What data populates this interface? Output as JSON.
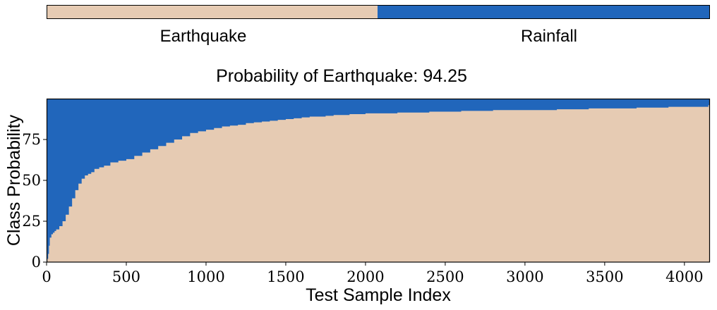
{
  "colors": {
    "earthquake": "#e6cbb3",
    "rainfall": "#2166bb",
    "frame": "#000000",
    "background": "#ffffff"
  },
  "legend": {
    "earthquake_label": "Earthquake",
    "rainfall_label": "Rainfall"
  },
  "chart_data": {
    "type": "area",
    "stacked": true,
    "title": "Probability of Earthquake: 94.25",
    "xlabel": "Test Sample Index",
    "ylabel": "Class Probability",
    "xlim": [
      0,
      4160
    ],
    "ylim": [
      0,
      100
    ],
    "x_ticks": [
      0,
      500,
      1000,
      1500,
      2000,
      2500,
      3000,
      3500,
      4000
    ],
    "y_ticks": [
      0,
      25,
      50,
      75
    ],
    "grid": false,
    "legend_position": "top",
    "series": [
      {
        "name": "Earthquake",
        "x": [
          0,
          5,
          10,
          15,
          20,
          30,
          40,
          50,
          60,
          80,
          100,
          120,
          140,
          160,
          180,
          200,
          220,
          240,
          260,
          280,
          300,
          330,
          360,
          400,
          450,
          500,
          550,
          600,
          650,
          700,
          750,
          800,
          850,
          900,
          950,
          1000,
          1050,
          1100,
          1150,
          1200,
          1250,
          1300,
          1350,
          1400,
          1450,
          1500,
          1550,
          1600,
          1650,
          1700,
          1750,
          1800,
          1900,
          2000,
          2100,
          2200,
          2300,
          2400,
          2500,
          2600,
          2700,
          2800,
          2900,
          3000,
          3100,
          3200,
          3300,
          3400,
          3500,
          3600,
          3700,
          3800,
          3900,
          4000,
          4100,
          4150,
          4160
        ],
        "values": [
          0,
          2,
          5,
          10,
          15,
          17,
          18,
          19,
          20,
          22,
          25,
          29,
          34,
          39,
          44,
          48,
          51,
          53,
          54,
          55,
          57,
          58,
          59,
          61,
          62,
          63,
          65,
          67,
          69,
          71,
          73,
          75,
          77,
          79,
          80,
          81,
          82,
          83,
          83.5,
          84,
          85,
          85.5,
          86,
          86.5,
          87,
          87.5,
          88,
          88.5,
          89,
          89,
          89.5,
          90,
          90.5,
          91,
          91,
          91.5,
          91.5,
          92,
          92,
          92.5,
          92.5,
          93,
          93,
          93,
          93,
          93.5,
          93.5,
          94,
          94,
          94,
          94.5,
          94.5,
          95,
          95,
          95,
          96,
          96
        ]
      },
      {
        "name": "Rainfall",
        "complement_of": "Earthquake"
      }
    ]
  }
}
